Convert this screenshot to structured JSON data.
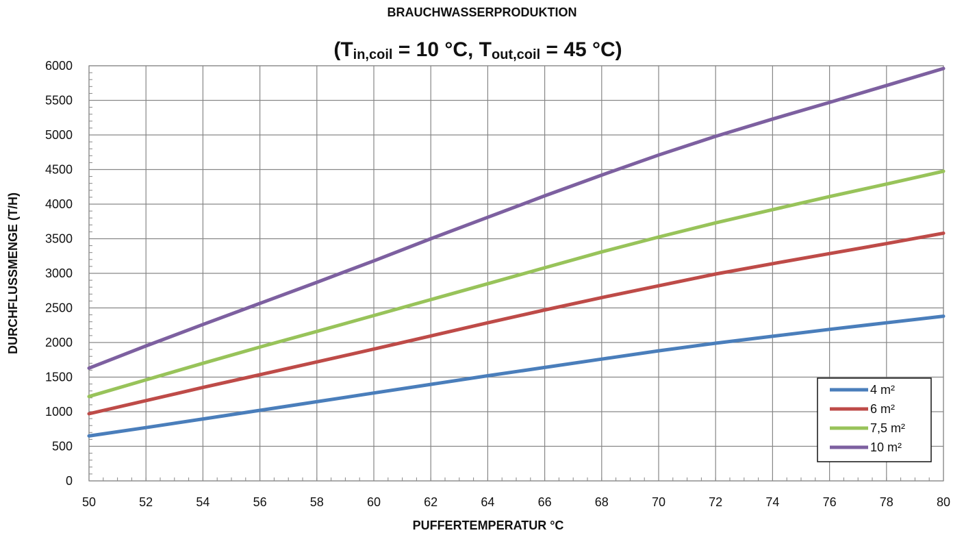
{
  "chart_data": {
    "type": "line",
    "title": "BRAUCHWASSERPRODUKTION",
    "subtitle": {
      "prefix": "(T",
      "sub1": "in,coil",
      "mid": " = 10 °C, T",
      "sub2": "out,coil",
      "suffix": " = 45 °C)"
    },
    "xlabel": "PUFFERTEMPERATUR °C",
    "ylabel": "DURCHFLUSSMENGE (T/H)",
    "xlim": [
      50,
      80
    ],
    "ylim": [
      0,
      6000
    ],
    "x_ticks": [
      "50",
      "52",
      "54",
      "56",
      "58",
      "60",
      "62",
      "64",
      "66",
      "68",
      "70",
      "72",
      "74",
      "76",
      "78",
      "80"
    ],
    "y_ticks": [
      "0",
      "500",
      "1000",
      "1500",
      "2000",
      "2500",
      "3000",
      "3500",
      "4000",
      "4500",
      "5000",
      "5500",
      "6000"
    ],
    "grid": true,
    "legend_position": "bottom-right",
    "x": [
      50,
      52,
      54,
      56,
      58,
      60,
      62,
      64,
      66,
      68,
      70,
      72,
      74,
      76,
      78,
      80
    ],
    "series": [
      {
        "name": "4 m²",
        "color": "#4a7ebb",
        "values": [
          650,
          770,
          895,
          1020,
          1145,
          1270,
          1395,
          1520,
          1640,
          1760,
          1880,
          1990,
          2090,
          2190,
          2285,
          2380
        ]
      },
      {
        "name": "6 m²",
        "color": "#be4b48",
        "values": [
          970,
          1160,
          1350,
          1535,
          1720,
          1905,
          2095,
          2285,
          2470,
          2650,
          2820,
          2990,
          3140,
          3285,
          3430,
          3580
        ]
      },
      {
        "name": "7,5 m²",
        "color": "#98c35a",
        "values": [
          1220,
          1460,
          1700,
          1935,
          2160,
          2390,
          2620,
          2850,
          3080,
          3310,
          3525,
          3730,
          3920,
          4110,
          4290,
          4475
        ]
      },
      {
        "name": "10 m²",
        "color": "#7d60a0",
        "values": [
          1630,
          1950,
          2260,
          2565,
          2870,
          3180,
          3500,
          3810,
          4120,
          4420,
          4710,
          4980,
          5230,
          5470,
          5715,
          5960
        ]
      }
    ]
  }
}
